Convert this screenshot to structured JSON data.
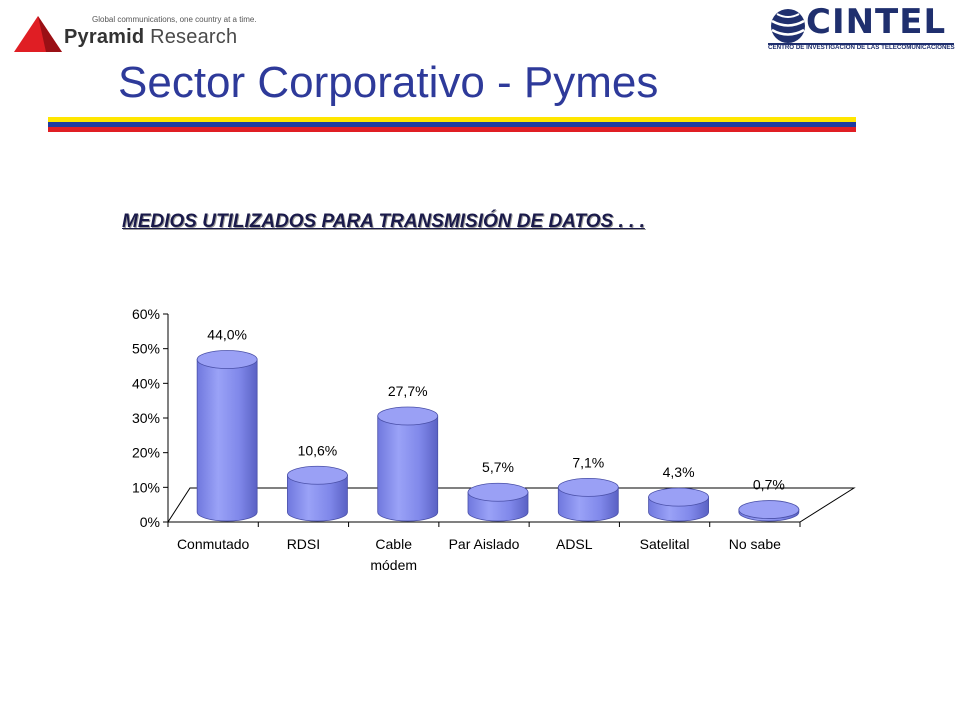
{
  "header": {
    "tagline": "Global communications, one country at a time.",
    "pyramid_brand": "Pyramid",
    "pyramid_suffix": "Research",
    "cintel_name": "CINTEL",
    "cintel_subtitle": "CENTRO DE INVESTIGACION DE LAS TELECOMUNICACIONES"
  },
  "slide": {
    "title": "Sector Corporativo - Pymes",
    "flag_colors": [
      "#ffe600",
      "#1e3ca0",
      "#e01e24"
    ]
  },
  "colors": {
    "bar_fill": "#8b93f0",
    "bar_dark": "#5b63c8",
    "bar_top": "#9aa0f5",
    "axis": "#000000"
  },
  "chart_data": {
    "type": "bar",
    "title": "MEDIOS UTILIZADOS PARA TRANSMISIÓN DE DATOS . . .",
    "categories": [
      [
        "Conmutado"
      ],
      [
        "RDSI"
      ],
      [
        "Cable",
        "módem"
      ],
      [
        "Par Aislado"
      ],
      [
        "ADSL"
      ],
      [
        "Satelital"
      ],
      [
        "No sabe"
      ]
    ],
    "values": [
      44.0,
      10.6,
      27.7,
      5.7,
      7.1,
      4.3,
      0.7
    ],
    "value_labels": [
      "44,0%",
      "10,6%",
      "27,7%",
      "5,7%",
      "7,1%",
      "4,3%",
      "0,7%"
    ],
    "y_ticks": [
      "0%",
      "10%",
      "20%",
      "30%",
      "40%",
      "50%",
      "60%"
    ],
    "ylim": [
      0,
      60
    ],
    "grid": false,
    "legend": false
  }
}
